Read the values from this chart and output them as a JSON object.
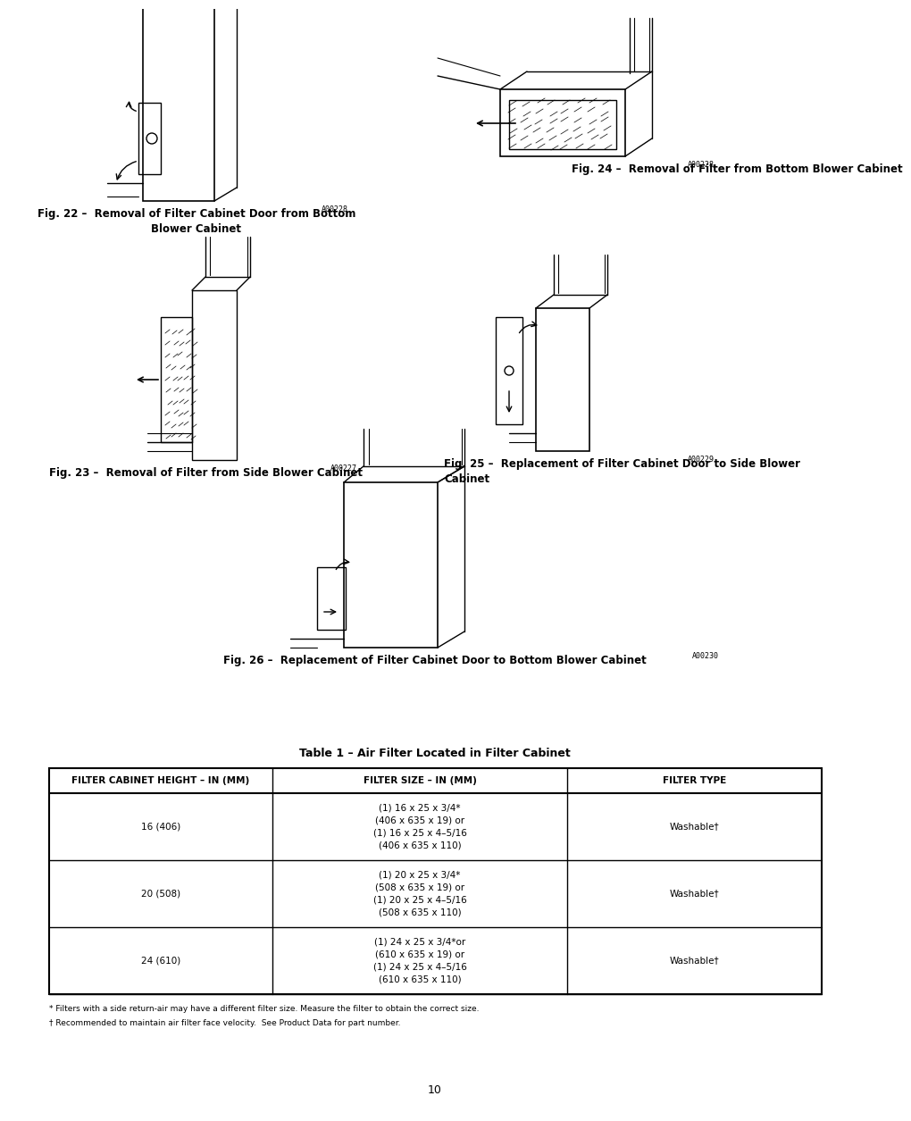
{
  "bg_color": "#ffffff",
  "fig_width": 9.54,
  "fig_height": 12.35,
  "dpi": 100,
  "page_number": "10",
  "fig22_caption": "Fig. 22 –  Removal of Filter Cabinet Door from Bottom\nBlower Cabinet",
  "fig22_code": "A00228",
  "fig23_caption": "Fig. 23 –  Removal of Filter from Side Blower Cabinet",
  "fig23_code": "A00227",
  "fig24_caption": "Fig. 24 –  Removal of Filter from Bottom Blower Cabinet",
  "fig24_code": "A00228",
  "fig25_caption": "Fig. 25 –  Replacement of Filter Cabinet Door to Side Blower\nCabinet",
  "fig25_code": "A00229",
  "fig26_caption": "Fig. 26 –  Replacement of Filter Cabinet Door to Bottom Blower Cabinet",
  "fig26_code": "A00230",
  "table_title": "Table 1 – Air Filter Located in Filter Cabinet",
  "table_headers": [
    "FILTER CABINET HEIGHT – IN (MM)",
    "FILTER SIZE – IN (MM)",
    "FILTER TYPE"
  ],
  "table_rows": [
    [
      "16 (406)",
      "(1) 16 x 25 x 3/4*\n(406 x 635 x 19) or\n(1) 16 x 25 x 4–5/16\n(406 x 635 x 110)",
      "Washable†"
    ],
    [
      "20 (508)",
      "(1) 20 x 25 x 3/4*\n(508 x 635 x 19) or\n(1) 20 x 25 x 4–5/16\n(508 x 635 x 110)",
      "Washable†"
    ],
    [
      "24 (610)",
      "(1) 24 x 25 x 3/4*or\n(610 x 635 x 19) or\n(1) 24 x 25 x 4–5/16\n(610 x 635 x 110)",
      "Washable†"
    ]
  ],
  "footnote1": "* Filters with a side return-air may have a different filter size. Measure the filter to obtain the correct size.",
  "footnote2": "† Recommended to maintain air filter face velocity.  See Product Data for part number."
}
